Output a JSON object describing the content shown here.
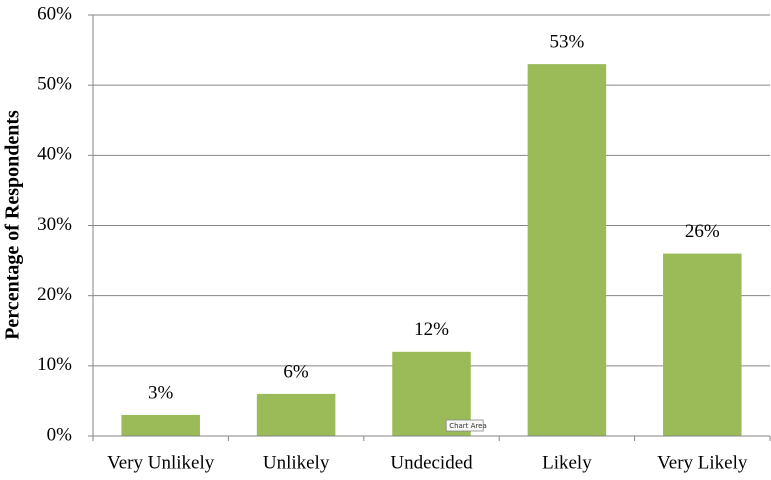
{
  "chart_data": {
    "type": "bar",
    "y_label": "Percentage of Respondents",
    "categories": [
      "Very Unlikely",
      "Unlikely",
      "Undecided",
      "Likely",
      "Very Likely"
    ],
    "values": [
      3,
      6,
      12,
      53,
      26
    ],
    "value_labels": [
      "3%",
      "6%",
      "12%",
      "53%",
      "26%"
    ],
    "color": "#9bbb59",
    "ylim": [
      0,
      60
    ],
    "yticks": [
      {
        "value": 0,
        "label": "0%"
      },
      {
        "value": 10,
        "label": "10%"
      },
      {
        "value": 20,
        "label": "20%"
      },
      {
        "value": 30,
        "label": "30%"
      },
      {
        "value": 40,
        "label": "40%"
      },
      {
        "value": 50,
        "label": "50%"
      },
      {
        "value": 60,
        "label": "60%"
      }
    ],
    "grid": true,
    "tooltip": "Chart Area"
  }
}
